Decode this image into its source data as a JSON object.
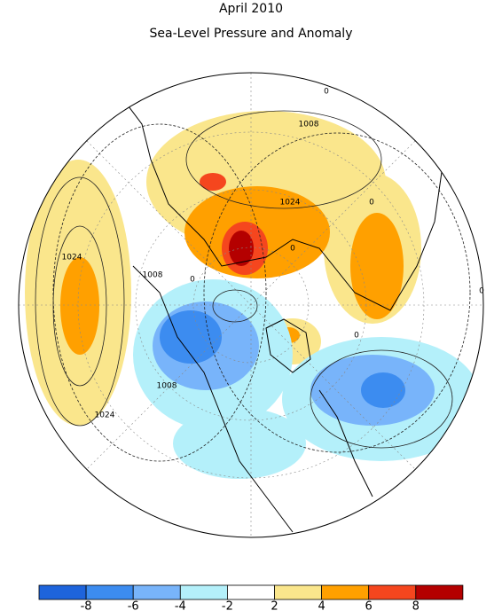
{
  "title": "April 2010",
  "subtitle": "Sea-Level Pressure and Anomaly",
  "contour_labels": [
    "1008",
    "1024",
    "0",
    "1024",
    "1008",
    "0",
    "1008",
    "1024",
    "0",
    "0",
    "0",
    "0"
  ],
  "colorbar": {
    "colors": [
      "#1e64dc",
      "#3c8cf0",
      "#78b4fa",
      "#b4f0fa",
      "#ffffff",
      "#fae68c",
      "#ffa000",
      "#f5461e",
      "#b40000"
    ],
    "ticks": [
      -8,
      -6,
      -4,
      -2,
      2,
      4,
      6,
      8
    ]
  }
}
